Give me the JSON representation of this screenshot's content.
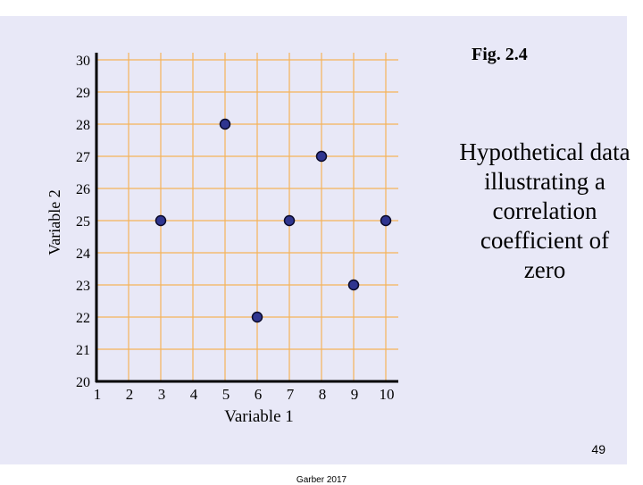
{
  "figure_label": "Fig.  2.4",
  "caption": "Hypothetical data illustrating a correlation coefficient of zero",
  "page_number": "49",
  "footer": "Garber 2017",
  "colors": {
    "background": "#e8e8f7",
    "grid": "#f5b35a",
    "axis": "#000000",
    "point_fill": "#2f3590",
    "point_stroke": "#0a0a2a"
  },
  "chart_data": {
    "type": "scatter",
    "xlabel": "Variable 1",
    "ylabel": "Variable 2",
    "xlim": [
      1,
      10
    ],
    "ylim": [
      20,
      30
    ],
    "x_ticks": [
      1,
      2,
      3,
      4,
      5,
      6,
      7,
      8,
      9,
      10
    ],
    "y_ticks": [
      20,
      21,
      22,
      23,
      24,
      25,
      26,
      27,
      28,
      29,
      30
    ],
    "grid": true,
    "points": [
      {
        "x": 3,
        "y": 25
      },
      {
        "x": 5,
        "y": 28
      },
      {
        "x": 6,
        "y": 22
      },
      {
        "x": 7,
        "y": 25
      },
      {
        "x": 8,
        "y": 27
      },
      {
        "x": 9,
        "y": 23
      },
      {
        "x": 10,
        "y": 25
      }
    ]
  }
}
